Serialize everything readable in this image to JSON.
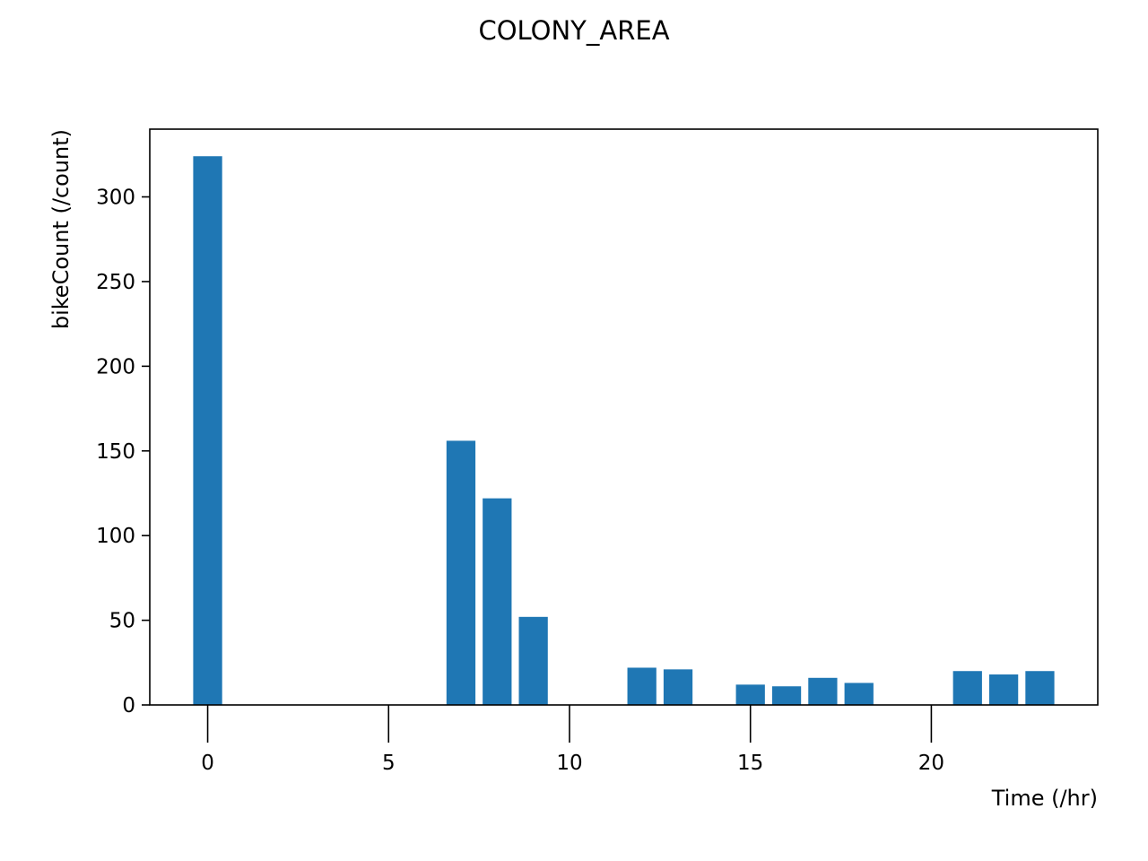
{
  "chart_data": {
    "type": "bar",
    "title": "COLONY_AREA",
    "xlabel": "Time (/hr)",
    "ylabel": "bikeCount (/count)",
    "bar_color": "#1f77b4",
    "x": [
      0,
      7,
      8,
      9,
      12,
      13,
      15,
      16,
      17,
      18,
      21,
      22,
      23
    ],
    "values": [
      324,
      156,
      122,
      52,
      22,
      21,
      12,
      11,
      16,
      13,
      20,
      18,
      20
    ],
    "xlim": [
      -1.6,
      24.6
    ],
    "ylim": [
      0,
      340
    ],
    "xticks": [
      0,
      5,
      10,
      15,
      20
    ],
    "yticks": [
      0,
      50,
      100,
      150,
      200,
      250,
      300
    ],
    "grid": false,
    "legend": "none"
  }
}
